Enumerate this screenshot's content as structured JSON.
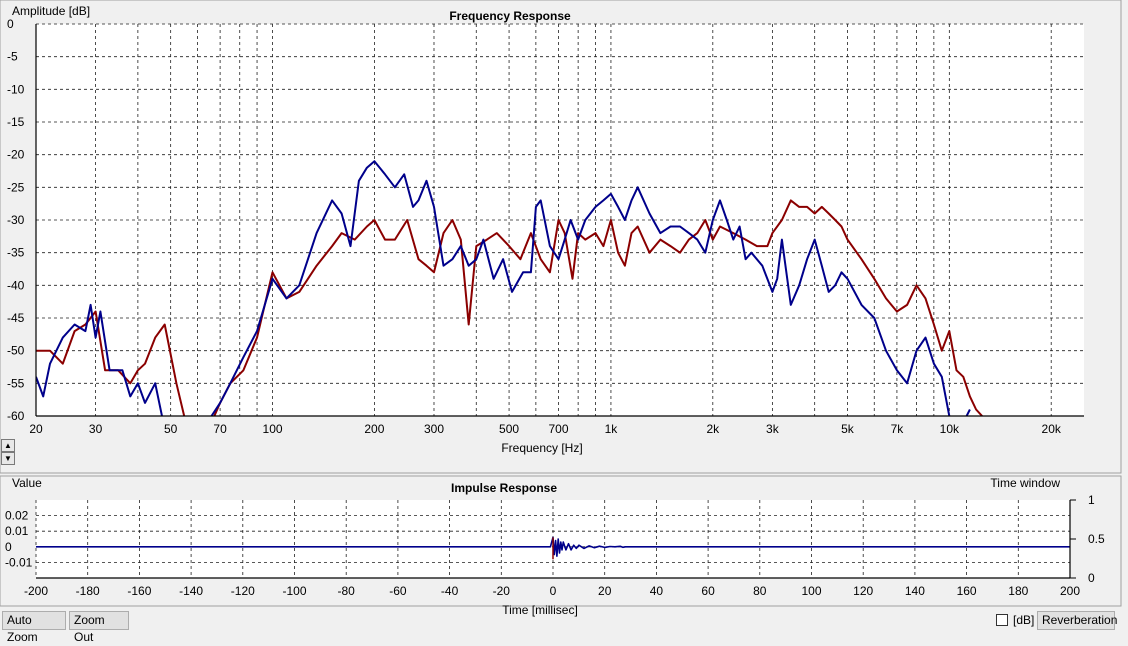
{
  "freq_panel": {
    "title": "Frequency Response",
    "ylabel": "Amplitude [dB]",
    "xlabel": "Frequency [Hz]"
  },
  "impulse_panel": {
    "title": "Impulse Response",
    "ylabel": "Value",
    "xlabel": "Time [millisec]",
    "window_label": "Time window"
  },
  "buttons": {
    "auto_zoom": "Auto Zoom",
    "zoom_out": "Zoom Out",
    "db_label": "[dB]",
    "reverberation": "Reverberation",
    "scroll_up": "▲",
    "scroll_down": "▼"
  },
  "colors": {
    "red_series": "#8b0000",
    "blue_series": "#00008b"
  },
  "chart_data": [
    {
      "type": "line",
      "title": "Frequency Response",
      "xlabel": "Frequency [Hz]",
      "ylabel": "Amplitude [dB]",
      "xscale": "log",
      "xlim": [
        20,
        25000
      ],
      "ylim": [
        -60,
        0
      ],
      "grid": true,
      "x_ticks": [
        20,
        30,
        50,
        70,
        100,
        200,
        300,
        500,
        700,
        1000,
        2000,
        3000,
        5000,
        7000,
        10000,
        20000
      ],
      "x_tick_labels": [
        "20",
        "30",
        "50",
        "70",
        "100",
        "200",
        "300",
        "500",
        "700",
        "1k",
        "2k",
        "3k",
        "5k",
        "7k",
        "10k",
        "20k"
      ],
      "y_ticks": [
        0,
        -5,
        -10,
        -15,
        -20,
        -25,
        -30,
        -35,
        -40,
        -45,
        -50,
        -55,
        -60
      ],
      "series": [
        {
          "color": "#8b0000",
          "x": [
            20,
            22,
            24,
            26,
            28,
            30,
            32,
            35,
            38,
            40,
            42,
            45,
            48,
            52,
            56,
            62,
            66,
            70,
            75,
            82,
            90,
            100,
            110,
            120,
            135,
            150,
            160,
            175,
            190,
            200,
            215,
            230,
            250,
            270,
            285,
            300,
            320,
            340,
            360,
            380,
            400,
            430,
            460,
            500,
            540,
            580,
            620,
            660,
            700,
            730,
            770,
            800,
            840,
            900,
            950,
            1000,
            1050,
            1100,
            1150,
            1200,
            1300,
            1400,
            1500,
            1600,
            1700,
            1800,
            1900,
            2000,
            2100,
            2300,
            2500,
            2700,
            2900,
            3000,
            3200,
            3400,
            3600,
            3800,
            4000,
            4200,
            4400,
            4600,
            4800,
            5000,
            5500,
            6000,
            6500,
            7000,
            7500,
            8000,
            8500,
            9000,
            9500,
            10000,
            10500,
            11000,
            11500,
            12000,
            12500
          ],
          "y": [
            -50,
            -50,
            -52,
            -47,
            -46,
            -44,
            -53,
            -53,
            -55,
            -53,
            -52,
            -48,
            -46,
            -55,
            -62,
            -65,
            -61,
            -58,
            -55,
            -53,
            -48,
            -38,
            -42,
            -41,
            -37,
            -34,
            -32,
            -33,
            -31,
            -30,
            -33,
            -33,
            -30,
            -36,
            -37,
            -38,
            -32,
            -30,
            -33,
            -46,
            -34,
            -33,
            -32,
            -34,
            -36,
            -32,
            -36,
            -38,
            -30,
            -32,
            -39,
            -32,
            -33,
            -32,
            -34,
            -30,
            -35,
            -37,
            -32,
            -31,
            -35,
            -33,
            -34,
            -35,
            -33,
            -32,
            -30,
            -33,
            -31,
            -32,
            -33,
            -34,
            -34,
            -32,
            -30,
            -27,
            -28,
            -28,
            -29,
            -28,
            -29,
            -30,
            -31,
            -33,
            -36,
            -39,
            -42,
            -44,
            -43,
            -40,
            -42,
            -46,
            -50,
            -47,
            -53,
            -54,
            -57,
            -59,
            -60
          ]
        },
        {
          "color": "#00008b",
          "x": [
            20,
            21,
            22,
            24,
            26,
            28,
            29,
            30,
            31,
            33,
            36,
            38,
            40,
            42,
            45,
            48,
            50,
            54,
            58,
            62,
            66,
            70,
            75,
            82,
            90,
            100,
            110,
            120,
            135,
            150,
            160,
            170,
            180,
            190,
            200,
            215,
            230,
            245,
            260,
            270,
            285,
            300,
            320,
            340,
            360,
            380,
            400,
            420,
            450,
            480,
            510,
            550,
            580,
            600,
            620,
            660,
            700,
            730,
            760,
            800,
            840,
            900,
            950,
            1000,
            1050,
            1100,
            1150,
            1200,
            1300,
            1400,
            1500,
            1600,
            1700,
            1800,
            1900,
            2000,
            2100,
            2200,
            2300,
            2400,
            2500,
            2600,
            2800,
            3000,
            3100,
            3200,
            3400,
            3600,
            3800,
            4000,
            4200,
            4400,
            4600,
            4800,
            5000,
            5500,
            6000,
            6500,
            7000,
            7500,
            8000,
            8500,
            9000,
            9500,
            10000,
            10500,
            11000,
            11500
          ],
          "y": [
            -54,
            -57,
            -52,
            -48,
            -46,
            -47,
            -43,
            -48,
            -44,
            -53,
            -53,
            -57,
            -55,
            -58,
            -55,
            -62,
            -63,
            -61,
            -63,
            -63,
            -60,
            -58,
            -55,
            -51,
            -47,
            -39,
            -42,
            -40,
            -32,
            -27,
            -29,
            -34,
            -24,
            -22,
            -21,
            -23,
            -25,
            -23,
            -28,
            -27,
            -24,
            -28,
            -37,
            -36,
            -34,
            -37,
            -36,
            -33,
            -39,
            -36,
            -41,
            -38,
            -38,
            -28,
            -27,
            -34,
            -36,
            -33,
            -30,
            -33,
            -30,
            -28,
            -27,
            -26,
            -28,
            -30,
            -27,
            -25,
            -29,
            -32,
            -31,
            -31,
            -32,
            -33,
            -35,
            -30,
            -27,
            -30,
            -33,
            -31,
            -36,
            -35,
            -37,
            -41,
            -39,
            -33,
            -43,
            -40,
            -36,
            -33,
            -37,
            -41,
            -40,
            -38,
            -39,
            -43,
            -45,
            -50,
            -53,
            -55,
            -50,
            -48,
            -52,
            -54,
            -60,
            -61,
            -61,
            -59
          ]
        }
      ]
    },
    {
      "type": "line",
      "title": "Impulse Response",
      "xlabel": "Time [millisec]",
      "ylabel": "Value",
      "xlim": [
        -200,
        200
      ],
      "ylim": [
        -0.02,
        0.03
      ],
      "grid": true,
      "x_ticks": [
        -200,
        -180,
        -160,
        -140,
        -120,
        -100,
        -80,
        -60,
        -40,
        -20,
        0,
        20,
        40,
        60,
        80,
        100,
        120,
        140,
        160,
        180,
        200
      ],
      "y_ticks": [
        0.02,
        0.01,
        0,
        -0.01
      ],
      "secondary_axis": {
        "label": "Time window",
        "ticks": [
          1,
          0.5,
          0
        ]
      },
      "series": [
        {
          "color": "#00008b",
          "x": [
            -200,
            -1,
            0,
            0.5,
            1,
            1.5,
            2,
            2.5,
            3,
            3.5,
            4,
            5,
            6,
            7,
            8,
            9,
            10,
            12,
            14,
            16,
            18,
            20,
            22,
            24,
            26,
            27,
            28,
            30,
            200
          ],
          "y": [
            0,
            0,
            0.006,
            -0.005,
            0.004,
            -0.006,
            0.005,
            -0.004,
            0.003,
            -0.002,
            0.003,
            -0.002,
            0.002,
            -0.002,
            0.001,
            -0.001,
            0.001,
            -0.001,
            0.0006,
            -0.0006,
            0.0004,
            -0.0004,
            0.0002,
            0,
            0.0003,
            -0.0003,
            0,
            0,
            0
          ]
        }
      ]
    }
  ]
}
